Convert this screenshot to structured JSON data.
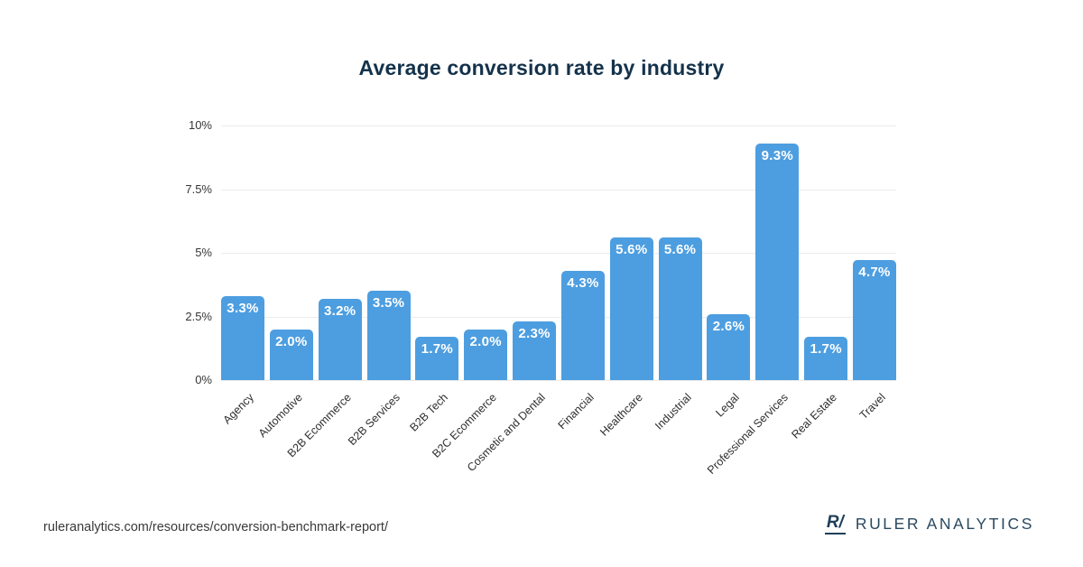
{
  "page": {
    "title": "Average conversion rate by industry"
  },
  "chart_data": {
    "type": "bar",
    "title": "Average conversion rate by industry",
    "categories": [
      "Agency",
      "Automotive",
      "B2B Ecommerce",
      "B2B Services",
      "B2B Tech",
      "B2C Ecommerce",
      "Cosmetic and Dental",
      "Financial",
      "Healthcare",
      "Industrial",
      "Legal",
      "Professional Services",
      "Real Estate",
      "Travel"
    ],
    "values": [
      3.3,
      2.0,
      3.2,
      3.5,
      1.7,
      2.0,
      2.3,
      4.3,
      5.6,
      5.6,
      2.6,
      9.3,
      1.7,
      4.7
    ],
    "value_labels": [
      "3.3%",
      "2.0%",
      "3.2%",
      "3.5%",
      "1.7%",
      "2.0%",
      "2.3%",
      "4.3%",
      "5.6%",
      "5.6%",
      "2.6%",
      "9.3%",
      "1.7%",
      "4.7%"
    ],
    "xlabel": "",
    "ylabel": "",
    "ylim": [
      0,
      10
    ],
    "yticks": [
      0,
      2.5,
      5,
      7.5,
      10
    ],
    "ytick_labels": [
      "0%",
      "2.5%",
      "5%",
      "7.5%",
      "10%"
    ],
    "grid": true,
    "legend": "none",
    "bar_color": "#4D9EE0",
    "value_label_color": "#ffffff"
  },
  "footer": {
    "url": "ruleranalytics.com/resources/conversion-benchmark-report/",
    "logo_glyph": "R/",
    "brand": "RULER ANALYTICS"
  }
}
